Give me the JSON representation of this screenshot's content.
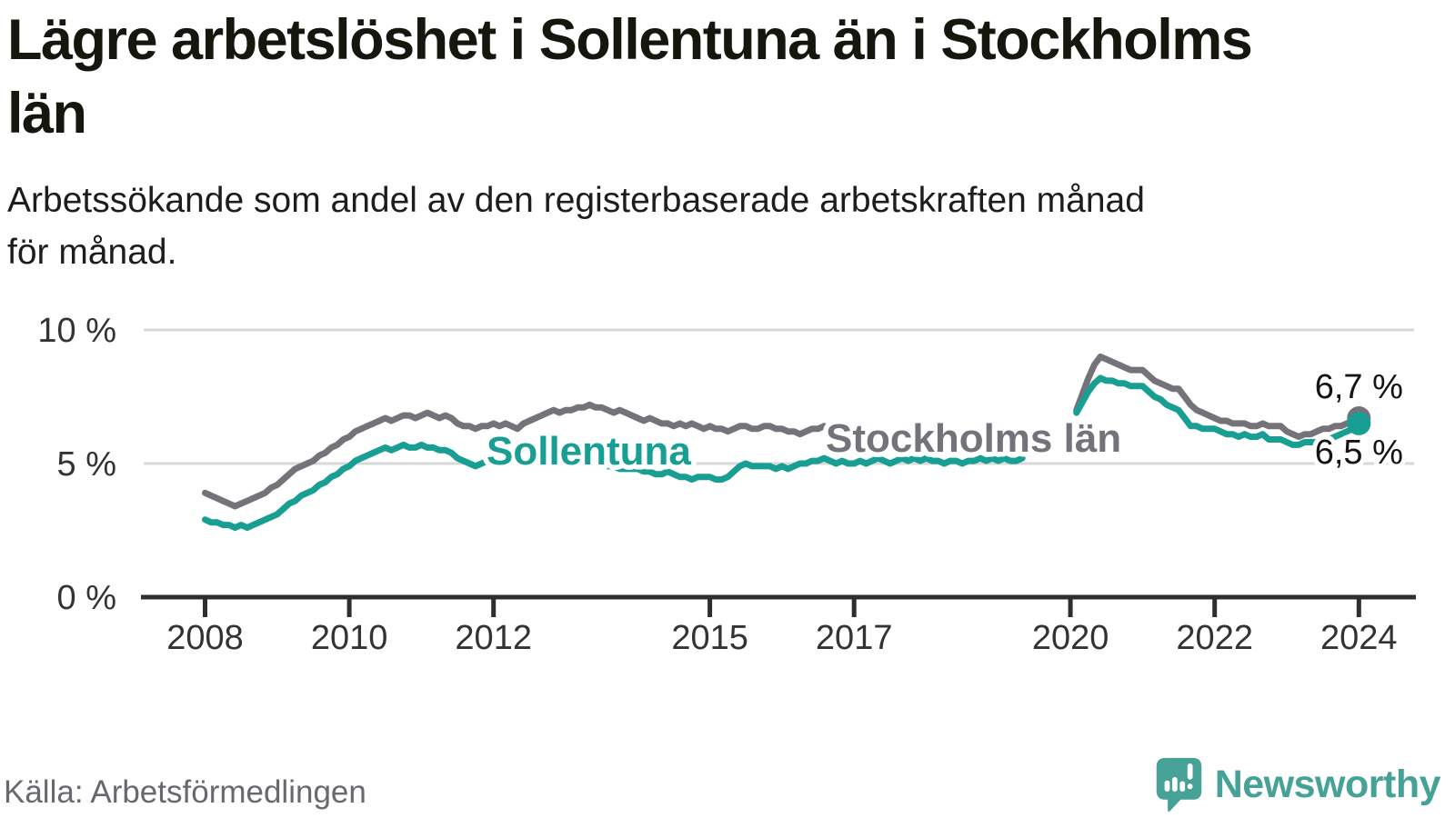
{
  "title": {
    "lines": [
      "Lägre arbetslöshet i Sollentuna än i Stockholms",
      "län"
    ]
  },
  "subtitle": {
    "lines": [
      "Arbetssökande som andel av den registerbaserade arbetskraften månad",
      "för månad."
    ]
  },
  "source": "Källa: Arbetsförmedlingen",
  "branding": {
    "name": "Newsworthy",
    "color": "#46a296"
  },
  "chart_data": {
    "type": "line",
    "unit": "%",
    "x_start": "2008-01",
    "x_end": "2024-01",
    "frequency": "monthly",
    "gap": "2019-06 to 2020-01 (no data published)",
    "ylim": [
      0,
      10.5
    ],
    "grid": "horizontal",
    "y_axis": {
      "ticks": [
        {
          "value": 0,
          "label": "0 %"
        },
        {
          "value": 5,
          "label": "5 %"
        },
        {
          "value": 10,
          "label": "10 %"
        }
      ]
    },
    "x_axis": {
      "ticks": [
        {
          "year": 2008,
          "label": "2008"
        },
        {
          "year": 2010,
          "label": "2010"
        },
        {
          "year": 2012,
          "label": "2012"
        },
        {
          "year": 2015,
          "label": "2015"
        },
        {
          "year": 2017,
          "label": "2017"
        },
        {
          "year": 2020,
          "label": "2020"
        },
        {
          "year": 2022,
          "label": "2022"
        },
        {
          "year": 2024,
          "label": "2024"
        }
      ]
    },
    "series": [
      {
        "name": "Stockholms län",
        "color": "#757379",
        "line_label": {
          "x": 908,
          "y": 497
        },
        "end_label": {
          "text": "6,7 %",
          "dy": -22
        },
        "values": [
          3.9,
          3.8,
          3.7,
          3.6,
          3.5,
          3.4,
          3.5,
          3.6,
          3.7,
          3.8,
          3.9,
          4.1,
          4.2,
          4.4,
          4.6,
          4.8,
          4.9,
          5.0,
          5.1,
          5.3,
          5.4,
          5.6,
          5.7,
          5.9,
          6.0,
          6.2,
          6.3,
          6.4,
          6.5,
          6.6,
          6.7,
          6.6,
          6.7,
          6.8,
          6.8,
          6.7,
          6.8,
          6.9,
          6.8,
          6.7,
          6.8,
          6.7,
          6.5,
          6.4,
          6.4,
          6.3,
          6.4,
          6.4,
          6.5,
          6.4,
          6.5,
          6.4,
          6.3,
          6.5,
          6.6,
          6.7,
          6.8,
          6.9,
          7.0,
          6.9,
          7.0,
          7.0,
          7.1,
          7.1,
          7.2,
          7.1,
          7.1,
          7.0,
          6.9,
          7.0,
          6.9,
          6.8,
          6.7,
          6.6,
          6.7,
          6.6,
          6.5,
          6.5,
          6.4,
          6.5,
          6.4,
          6.5,
          6.4,
          6.3,
          6.4,
          6.3,
          6.3,
          6.2,
          6.3,
          6.4,
          6.4,
          6.3,
          6.3,
          6.4,
          6.4,
          6.3,
          6.3,
          6.2,
          6.2,
          6.1,
          6.2,
          6.3,
          6.3,
          6.4,
          6.3,
          6.2,
          6.3,
          6.2,
          6.2,
          6.3,
          6.2,
          6.1,
          6.1,
          6.2,
          6.1,
          6.1,
          6.0,
          6.0,
          6.1,
          6.0,
          6.0,
          6.0,
          5.9,
          5.9,
          6.0,
          6.0,
          5.9,
          6.0,
          6.0,
          6.1,
          6.0,
          6.1,
          6.1,
          6.1,
          6.0,
          6.1,
          6.1,
          null,
          null,
          null,
          null,
          null,
          null,
          null,
          null,
          7.0,
          7.6,
          8.2,
          8.7,
          9.0,
          8.9,
          8.8,
          8.7,
          8.6,
          8.5,
          8.5,
          8.5,
          8.3,
          8.1,
          8.0,
          7.9,
          7.8,
          7.8,
          7.5,
          7.2,
          7.0,
          6.9,
          6.8,
          6.7,
          6.6,
          6.6,
          6.5,
          6.5,
          6.5,
          6.4,
          6.4,
          6.5,
          6.4,
          6.4,
          6.4,
          6.2,
          6.1,
          6.0,
          6.1,
          6.1,
          6.2,
          6.3,
          6.3,
          6.4,
          6.4,
          6.5,
          6.6,
          6.7
        ]
      },
      {
        "name": "Sollentuna",
        "color": "#189e92",
        "line_label": {
          "x": 535,
          "y": 511
        },
        "end_label": {
          "text": "6,5 %",
          "dy": 44
        },
        "values": [
          2.9,
          2.8,
          2.8,
          2.7,
          2.7,
          2.6,
          2.7,
          2.6,
          2.7,
          2.8,
          2.9,
          3.0,
          3.1,
          3.3,
          3.5,
          3.6,
          3.8,
          3.9,
          4.0,
          4.2,
          4.3,
          4.5,
          4.6,
          4.8,
          4.9,
          5.1,
          5.2,
          5.3,
          5.4,
          5.5,
          5.6,
          5.5,
          5.6,
          5.7,
          5.6,
          5.6,
          5.7,
          5.6,
          5.6,
          5.5,
          5.5,
          5.4,
          5.2,
          5.1,
          5.0,
          4.9,
          5.0,
          5.1,
          5.2,
          5.3,
          5.4,
          5.4,
          5.3,
          5.3,
          5.2,
          5.2,
          5.3,
          5.3,
          5.4,
          5.3,
          5.3,
          5.2,
          5.2,
          5.1,
          5.1,
          5.0,
          5.0,
          4.9,
          4.9,
          4.8,
          4.8,
          4.8,
          4.8,
          4.7,
          4.7,
          4.6,
          4.6,
          4.7,
          4.6,
          4.5,
          4.5,
          4.4,
          4.5,
          4.5,
          4.5,
          4.4,
          4.4,
          4.5,
          4.7,
          4.9,
          5.0,
          4.9,
          4.9,
          4.9,
          4.9,
          4.8,
          4.9,
          4.8,
          4.9,
          5.0,
          5.0,
          5.1,
          5.1,
          5.2,
          5.1,
          5.0,
          5.1,
          5.0,
          5.0,
          5.1,
          5.0,
          5.1,
          5.2,
          5.1,
          5.0,
          5.1,
          5.2,
          5.1,
          5.2,
          5.1,
          5.2,
          5.1,
          5.1,
          5.0,
          5.1,
          5.1,
          5.0,
          5.1,
          5.1,
          5.2,
          5.1,
          5.2,
          5.1,
          5.2,
          5.1,
          5.1,
          5.2,
          null,
          null,
          null,
          null,
          null,
          null,
          null,
          null,
          6.9,
          7.3,
          7.7,
          8.0,
          8.2,
          8.1,
          8.1,
          8.0,
          8.0,
          7.9,
          7.9,
          7.9,
          7.7,
          7.5,
          7.4,
          7.2,
          7.1,
          7.0,
          6.7,
          6.4,
          6.4,
          6.3,
          6.3,
          6.3,
          6.2,
          6.1,
          6.1,
          6.0,
          6.1,
          6.0,
          6.0,
          6.1,
          5.9,
          5.9,
          5.9,
          5.8,
          5.7,
          5.7,
          5.8,
          5.8,
          5.8,
          5.9,
          5.9,
          6.0,
          6.1,
          6.2,
          6.3,
          6.5
        ]
      }
    ],
    "style": {
      "grid_color": "#d8d8d8",
      "axis_color": "#2e2e2e",
      "tick_label_color": "#333333",
      "end_label_color": "#141414"
    }
  }
}
